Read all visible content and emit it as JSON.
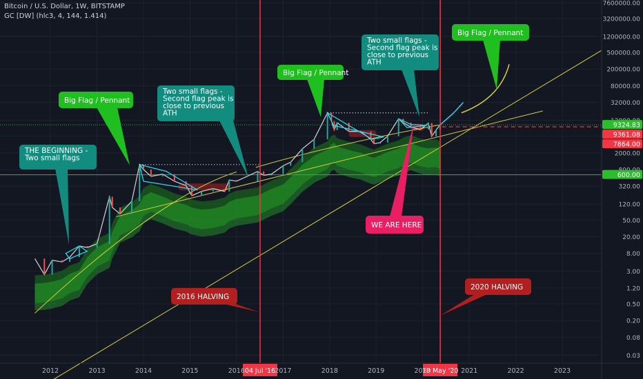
{
  "header": {
    "symbol_line": "Bitcoin / U.S. Dollar, 1W, BITSTAMP",
    "indicator_line": "GC [DW] (hlc3, 4, 144, 1.414)"
  },
  "colors": {
    "background": "#131722",
    "grid": "#1e2230",
    "candle_up": "#26a69a",
    "candle_down": "#ef5350",
    "flag_lines": "#2ad4f0",
    "trend_lines": "#d8cf3e",
    "halving_lines": "#f23645",
    "support_line": "#2bbd2b",
    "callout_green": "#1fbf1f",
    "callout_teal": "#128c7e",
    "callout_red": "#b21f1f",
    "callout_pink": "#e91e63"
  },
  "chart_data": {
    "type": "line",
    "title": "Bitcoin / U.S. Dollar, 1W, BITSTAMP",
    "subtitle": "GC [DW] (hlc3, 4, 144, 1.414)",
    "y_scale": "log",
    "ylim": [
      0.02,
      7600000
    ],
    "xlim": [
      "2011-07-01",
      "2023-12-31"
    ],
    "grid": true,
    "y_ticks": [
      "7600000.00",
      "3200000.00",
      "1200000.00",
      "500000.00",
      "200000.00",
      "80000.00",
      "32000.00",
      "12000.00",
      "5000.00",
      "2000.00",
      "800.00",
      "320.00",
      "120.00",
      "50.00",
      "20.00",
      "8.00",
      "3.00",
      "1.20",
      "0.50",
      "0.20",
      "0.08",
      "0.03"
    ],
    "x_ticks": [
      "2012",
      "2013",
      "2014",
      "2015",
      "2016",
      "2017",
      "2018",
      "2019",
      "2020",
      "2021",
      "2022",
      "2023"
    ],
    "price_labels": [
      {
        "value": 9324.83,
        "text": "9324.83",
        "kind": "current"
      },
      {
        "value": 9361.08,
        "text": "9361.08",
        "kind": "high"
      },
      {
        "value": 7864.0,
        "text": "7864.00",
        "kind": "low"
      },
      {
        "value": 600.0,
        "text": "600.00",
        "kind": "support"
      }
    ],
    "date_labels": [
      {
        "date": "2016-07-04",
        "text": "04 Jul '16"
      },
      {
        "date": "2020-05-18",
        "text": "18 May '20"
      }
    ],
    "series": [
      {
        "name": "BTC/USD close",
        "points": [
          [
            "2011-09-01",
            6
          ],
          [
            "2011-11-15",
            2.5
          ],
          [
            "2012-01-15",
            5.5
          ],
          [
            "2012-04-01",
            5
          ],
          [
            "2012-06-01",
            6.5
          ],
          [
            "2012-08-15",
            12
          ],
          [
            "2012-10-15",
            11
          ],
          [
            "2013-01-01",
            13.5
          ],
          [
            "2013-04-09",
            180
          ],
          [
            "2013-05-01",
            100
          ],
          [
            "2013-07-01",
            70
          ],
          [
            "2013-10-01",
            140
          ],
          [
            "2013-12-01",
            1050
          ],
          [
            "2014-01-01",
            800
          ],
          [
            "2014-03-01",
            550
          ],
          [
            "2014-06-01",
            620
          ],
          [
            "2014-09-01",
            420
          ],
          [
            "2014-12-01",
            330
          ],
          [
            "2015-01-15",
            190
          ],
          [
            "2015-04-01",
            240
          ],
          [
            "2015-07-01",
            280
          ],
          [
            "2015-10-01",
            240
          ],
          [
            "2015-11-05",
            450
          ],
          [
            "2016-01-01",
            420
          ],
          [
            "2016-06-15",
            720
          ],
          [
            "2016-08-01",
            580
          ],
          [
            "2016-10-01",
            620
          ],
          [
            "2017-01-01",
            980
          ],
          [
            "2017-03-01",
            1200
          ],
          [
            "2017-06-01",
            2500
          ],
          [
            "2017-09-01",
            4200
          ],
          [
            "2017-12-15",
            18000
          ],
          [
            "2018-01-15",
            11500
          ],
          [
            "2018-02-06",
            7000
          ],
          [
            "2018-03-01",
            10500
          ],
          [
            "2018-06-01",
            6500
          ],
          [
            "2018-09-01",
            6500
          ],
          [
            "2018-11-20",
            4200
          ],
          [
            "2018-12-15",
            3300
          ],
          [
            "2019-02-01",
            3500
          ],
          [
            "2019-04-01",
            5000
          ],
          [
            "2019-06-26",
            13000
          ],
          [
            "2019-08-01",
            10500
          ],
          [
            "2019-10-01",
            8200
          ],
          [
            "2019-12-15",
            7200
          ],
          [
            "2020-02-15",
            10300
          ],
          [
            "2020-03-12",
            4900
          ],
          [
            "2020-04-15",
            7000
          ],
          [
            "2020-05-18",
            9324.83
          ]
        ]
      },
      {
        "name": "projection",
        "points": [
          [
            "2020-05-18",
            9324.83
          ],
          [
            "2020-09-01",
            18000
          ],
          [
            "2020-11-15",
            32000
          ]
        ]
      }
    ],
    "annotations": [
      {
        "text": "THE BEGINNING -\nTwo small flags",
        "color": "teal"
      },
      {
        "text": "Big Flag / Pennant",
        "color": "green"
      },
      {
        "text": "Two small flags -\nSecond flag peak is\nclose to previous\nATH",
        "color": "teal"
      },
      {
        "text": "Big Flag / Pennant",
        "color": "green"
      },
      {
        "text": "Two small flags -\nSecond flag peak is\nclose to previous\nATH",
        "color": "teal"
      },
      {
        "text": "Big Flag / Pennant",
        "color": "green"
      },
      {
        "text": "WE ARE HERE",
        "color": "pink"
      },
      {
        "text": "2016 HALVING",
        "color": "red"
      },
      {
        "text": "2020 HALVING",
        "color": "red"
      }
    ]
  }
}
